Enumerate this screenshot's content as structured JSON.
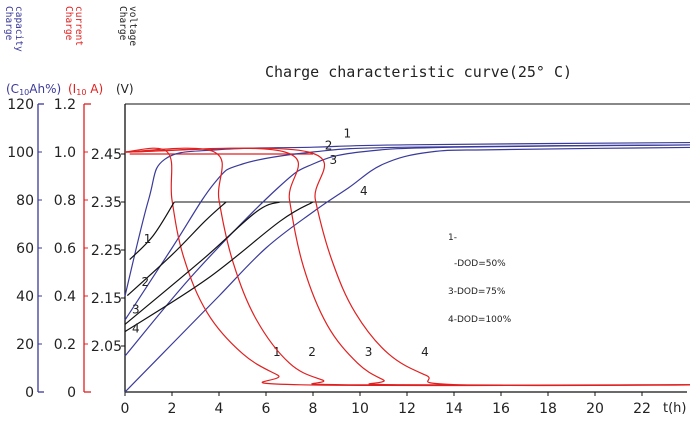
{
  "title": "Charge characteristic curve(25° C)",
  "axis_titles": {
    "capacity": [
      "Charge",
      "capacity"
    ],
    "current": [
      "Charge",
      "current"
    ],
    "voltage": [
      "Charge",
      "voltage"
    ]
  },
  "axis_units": {
    "capacity": "(C",
    "capacity_sub": "10",
    "capacity_tail": "Ah%)",
    "current": "(I",
    "current_sub": "10",
    "current_tail": " A)",
    "voltage": "(V)"
  },
  "x_unit": "t(h)",
  "legend_lines": [
    "1-",
    "-DOD=50%",
    "3-DOD=75%",
    "4-DOD=100%"
  ],
  "colors": {
    "capacity": "#3a3a9a",
    "current": "#e02020",
    "voltage": "#111111",
    "title": "#222222"
  },
  "chart_data": {
    "type": "line",
    "x_ticks": [
      "0",
      "2",
      "4",
      "6",
      "8",
      "10",
      "12",
      "14",
      "16",
      "18",
      "20",
      "22"
    ],
    "xlim": [
      0,
      25
    ],
    "capacity_axis": {
      "ticks": [
        "0",
        "20",
        "40",
        "60",
        "80",
        "100",
        "120"
      ],
      "range": [
        0,
        120
      ]
    },
    "current_axis": {
      "ticks": [
        "0",
        "0.2",
        "0.4",
        "0.6",
        "0.8",
        "1.0",
        "1.2"
      ],
      "range": [
        0,
        1.2
      ]
    },
    "voltage_axis": {
      "ticks": [
        "2.05",
        "2.15",
        "2.25",
        "2.35",
        "2.45"
      ],
      "values": [
        2.05,
        2.15,
        2.25,
        2.35,
        2.45
      ],
      "range": [
        1.95,
        2.55
      ]
    },
    "capacity_series": [
      {
        "label": "1",
        "points": [
          [
            0,
            40
          ],
          [
            1,
            80
          ],
          [
            1.7,
            97
          ],
          [
            4,
            101
          ],
          [
            8,
            102
          ],
          [
            12,
            103
          ],
          [
            25,
            104
          ]
        ],
        "label_at": [
          9.3,
          106
        ]
      },
      {
        "label": "2",
        "points": [
          [
            0,
            30
          ],
          [
            2,
            60
          ],
          [
            3.8,
            87
          ],
          [
            5,
            95
          ],
          [
            8,
            100
          ],
          [
            12,
            102
          ],
          [
            25,
            103
          ]
        ],
        "label_at": [
          8.5,
          101
        ]
      },
      {
        "label": "3",
        "points": [
          [
            0,
            15
          ],
          [
            3,
            50
          ],
          [
            6.5,
            85
          ],
          [
            8,
            95
          ],
          [
            10,
            100
          ],
          [
            14,
            102
          ],
          [
            25,
            103
          ]
        ],
        "label_at": [
          8.7,
          95
        ]
      },
      {
        "label": "4",
        "points": [
          [
            0,
            0
          ],
          [
            2,
            20
          ],
          [
            4,
            40
          ],
          [
            6,
            60
          ],
          [
            8,
            75
          ],
          [
            9.5,
            85
          ],
          [
            11,
            95
          ],
          [
            13,
            100
          ],
          [
            16,
            101
          ],
          [
            25,
            102
          ]
        ],
        "label_at": [
          10.0,
          82
        ]
      }
    ],
    "current_series": [
      {
        "label": "1",
        "points": [
          [
            0,
            1.0
          ],
          [
            1.8,
            1.0
          ],
          [
            2,
            0.8
          ],
          [
            2.5,
            0.56
          ],
          [
            3.5,
            0.33
          ],
          [
            5,
            0.16
          ],
          [
            6.5,
            0.07
          ],
          [
            7.5,
            0.03
          ],
          [
            25,
            0.03
          ]
        ],
        "label_at": [
          6.3,
          0.15
        ]
      },
      {
        "label": "2",
        "points": [
          [
            0,
            1.0
          ],
          [
            3.8,
            1.0
          ],
          [
            4,
            0.8
          ],
          [
            4.6,
            0.54
          ],
          [
            5.6,
            0.3
          ],
          [
            7,
            0.12
          ],
          [
            8.4,
            0.05
          ],
          [
            9.5,
            0.03
          ],
          [
            25,
            0.03
          ]
        ],
        "label_at": [
          7.8,
          0.15
        ]
      },
      {
        "label": "3",
        "points": [
          [
            0,
            1.0
          ],
          [
            6.8,
            1.0
          ],
          [
            7,
            0.8
          ],
          [
            7.6,
            0.52
          ],
          [
            8.6,
            0.28
          ],
          [
            9.9,
            0.12
          ],
          [
            11,
            0.05
          ],
          [
            11.6,
            0.03
          ],
          [
            25,
            0.03
          ]
        ],
        "label_at": [
          10.2,
          0.15
        ]
      },
      {
        "label": "4",
        "points": [
          [
            0,
            1.0
          ],
          [
            7.8,
            1.0
          ],
          [
            8.1,
            0.8
          ],
          [
            8.8,
            0.55
          ],
          [
            9.8,
            0.33
          ],
          [
            11.2,
            0.16
          ],
          [
            12.8,
            0.07
          ],
          [
            14.2,
            0.03
          ],
          [
            25,
            0.03
          ]
        ],
        "label_at": [
          12.6,
          0.15
        ]
      }
    ],
    "voltage_series": [
      {
        "label": "1",
        "points": [
          [
            0.2,
            2.23
          ],
          [
            1.2,
            2.28
          ],
          [
            2.1,
            2.35
          ]
        ],
        "label_at": [
          0.8,
          2.265
        ]
      },
      {
        "label": "2",
        "points": [
          [
            0.1,
            2.155
          ],
          [
            2.0,
            2.24
          ],
          [
            3.4,
            2.31
          ],
          [
            4.3,
            2.35
          ]
        ],
        "label_at": [
          0.7,
          2.175
        ]
      },
      {
        "label": "3",
        "points": [
          [
            0.0,
            2.095
          ],
          [
            3.3,
            2.23
          ],
          [
            5.6,
            2.33
          ],
          [
            6.6,
            2.35
          ]
        ],
        "label_at": [
          0.3,
          2.118
        ]
      },
      {
        "label": "4",
        "points": [
          [
            0.0,
            2.08
          ],
          [
            3.5,
            2.19
          ],
          [
            6.6,
            2.31
          ],
          [
            8.0,
            2.35
          ]
        ],
        "label_at": [
          0.3,
          2.078
        ]
      }
    ],
    "voltage_plateau_1": [
      [
        2.1,
        2.35
      ],
      [
        25,
        2.35
      ]
    ],
    "voltage_plateau_2": [
      [
        0.2,
        2.45
      ],
      [
        8.0,
        2.45
      ]
    ],
    "current_top": [
      [
        0.0,
        1.2
      ],
      [
        25,
        1.2
      ]
    ]
  }
}
